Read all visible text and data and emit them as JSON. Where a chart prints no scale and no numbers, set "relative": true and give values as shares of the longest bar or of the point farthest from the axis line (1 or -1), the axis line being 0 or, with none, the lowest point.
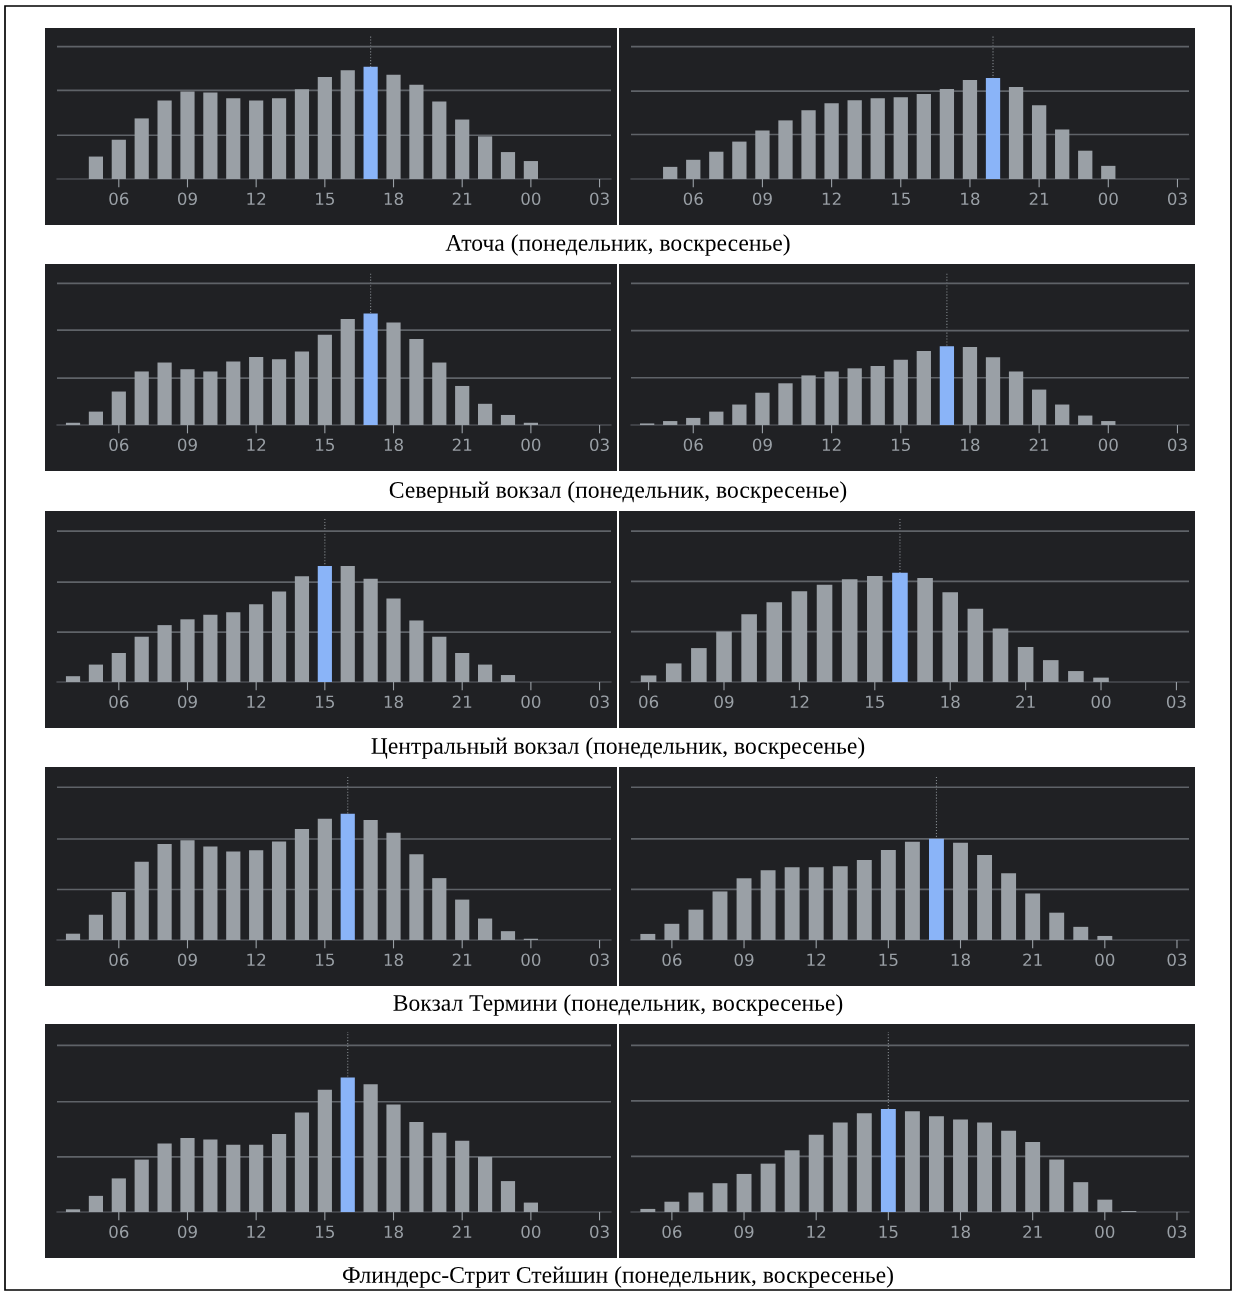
{
  "chart_data": [
    {
      "type": "bar",
      "relative": true,
      "annotations": [
        "Аточа (понедельник, воскресенье)"
      ],
      "categories": [
        null,
        null,
        "06",
        null,
        null,
        "09",
        null,
        null,
        "12",
        null,
        null,
        "15",
        null,
        null,
        "18",
        null,
        null,
        "21",
        null,
        null,
        "00",
        null,
        null,
        "03"
      ],
      "ref_lines": [
        {
          "axis": "y",
          "value": 0.39,
          "color": "#5f6368"
        },
        {
          "axis": "y",
          "value": 0.79,
          "color": "#5f6368"
        },
        {
          "axis": "y",
          "value": 1.18,
          "color": "#5f6368"
        }
      ],
      "values": [
        null,
        0.2,
        0.35,
        0.54,
        0.7,
        0.78,
        0.77,
        0.72,
        0.7,
        0.72,
        0.8,
        0.91,
        0.97,
        1,
        0.93,
        0.84,
        0.69,
        0.53,
        0.38,
        0.24,
        0.16,
        null,
        null,
        null
      ],
      "colors": [
        "#9aa0a6",
        "#9aa0a6",
        "#9aa0a6",
        "#9aa0a6",
        "#9aa0a6",
        "#9aa0a6",
        "#9aa0a6",
        "#9aa0a6",
        "#9aa0a6",
        "#9aa0a6",
        "#9aa0a6",
        "#9aa0a6",
        "#9aa0a6",
        "#8ab4f8",
        "#9aa0a6",
        "#9aa0a6",
        "#9aa0a6",
        "#9aa0a6",
        "#9aa0a6",
        "#9aa0a6",
        "#9aa0a6",
        "#9aa0a6",
        "#9aa0a6",
        "#9aa0a6"
      ]
    },
    {
      "type": "bar",
      "relative": true,
      "categories": [
        null,
        null,
        "06",
        null,
        null,
        "09",
        null,
        null,
        "12",
        null,
        null,
        "15",
        null,
        null,
        "18",
        null,
        null,
        "21",
        null,
        null,
        "00",
        null,
        null,
        "03"
      ],
      "ref_lines": [
        {
          "axis": "y",
          "value": 0.44,
          "color": "#5f6368"
        },
        {
          "axis": "y",
          "value": 0.87,
          "color": "#5f6368"
        },
        {
          "axis": "y",
          "value": 1.31,
          "color": "#5f6368"
        }
      ],
      "values": [
        null,
        0.12,
        0.19,
        0.27,
        0.37,
        0.48,
        0.58,
        0.68,
        0.75,
        0.78,
        0.8,
        0.81,
        0.84,
        0.89,
        0.98,
        1,
        0.91,
        0.73,
        0.49,
        0.28,
        0.13,
        null,
        null,
        null
      ],
      "colors": [
        "#9aa0a6",
        "#9aa0a6",
        "#9aa0a6",
        "#9aa0a6",
        "#9aa0a6",
        "#9aa0a6",
        "#9aa0a6",
        "#9aa0a6",
        "#9aa0a6",
        "#9aa0a6",
        "#9aa0a6",
        "#9aa0a6",
        "#9aa0a6",
        "#9aa0a6",
        "#9aa0a6",
        "#8ab4f8",
        "#9aa0a6",
        "#9aa0a6",
        "#9aa0a6",
        "#9aa0a6",
        "#9aa0a6",
        "#9aa0a6",
        "#9aa0a6",
        "#9aa0a6"
      ]
    },
    {
      "type": "bar",
      "relative": true,
      "annotations": [
        "Северный вокзал (понедельник, воскресенье)"
      ],
      "categories": [
        null,
        null,
        "06",
        null,
        null,
        "09",
        null,
        null,
        "12",
        null,
        null,
        "15",
        null,
        null,
        "18",
        null,
        null,
        "21",
        null,
        null,
        "00",
        null,
        null,
        "03"
      ],
      "ref_lines": [
        {
          "axis": "y",
          "value": 0.42,
          "color": "#5f6368"
        },
        {
          "axis": "y",
          "value": 0.85,
          "color": "#5f6368"
        },
        {
          "axis": "y",
          "value": 1.27,
          "color": "#5f6368"
        }
      ],
      "values": [
        0.02,
        0.12,
        0.3,
        0.48,
        0.56,
        0.5,
        0.48,
        0.57,
        0.61,
        0.59,
        0.66,
        0.81,
        0.95,
        1,
        0.92,
        0.77,
        0.56,
        0.35,
        0.19,
        0.09,
        0.02,
        null,
        null,
        null
      ],
      "colors": [
        "#9aa0a6",
        "#9aa0a6",
        "#9aa0a6",
        "#9aa0a6",
        "#9aa0a6",
        "#9aa0a6",
        "#9aa0a6",
        "#9aa0a6",
        "#9aa0a6",
        "#9aa0a6",
        "#9aa0a6",
        "#9aa0a6",
        "#9aa0a6",
        "#8ab4f8",
        "#9aa0a6",
        "#9aa0a6",
        "#9aa0a6",
        "#9aa0a6",
        "#9aa0a6",
        "#9aa0a6",
        "#9aa0a6",
        "#9aa0a6",
        "#9aa0a6",
        "#9aa0a6"
      ]
    },
    {
      "type": "bar",
      "relative": true,
      "categories": [
        null,
        null,
        "06",
        null,
        null,
        "09",
        null,
        null,
        "12",
        null,
        null,
        "15",
        null,
        null,
        "18",
        null,
        null,
        "21",
        null,
        null,
        "00",
        null,
        null,
        "03"
      ],
      "ref_lines": [
        {
          "axis": "y",
          "value": 0.6,
          "color": "#5f6368"
        },
        {
          "axis": "y",
          "value": 1.2,
          "color": "#5f6368"
        },
        {
          "axis": "y",
          "value": 1.8,
          "color": "#5f6368"
        }
      ],
      "values": [
        0.02,
        0.05,
        0.09,
        0.17,
        0.26,
        0.41,
        0.53,
        0.63,
        0.68,
        0.72,
        0.75,
        0.83,
        0.94,
        1,
        0.99,
        0.86,
        0.68,
        0.45,
        0.26,
        0.12,
        0.05,
        null,
        null,
        null
      ],
      "colors": [
        "#9aa0a6",
        "#9aa0a6",
        "#9aa0a6",
        "#9aa0a6",
        "#9aa0a6",
        "#9aa0a6",
        "#9aa0a6",
        "#9aa0a6",
        "#9aa0a6",
        "#9aa0a6",
        "#9aa0a6",
        "#9aa0a6",
        "#9aa0a6",
        "#8ab4f8",
        "#9aa0a6",
        "#9aa0a6",
        "#9aa0a6",
        "#9aa0a6",
        "#9aa0a6",
        "#9aa0a6",
        "#9aa0a6",
        "#9aa0a6",
        "#9aa0a6",
        "#9aa0a6"
      ]
    },
    {
      "type": "bar",
      "relative": true,
      "annotations": [
        "Центральный вокзал (понедельник, воскресенье)"
      ],
      "categories": [
        null,
        null,
        "06",
        null,
        null,
        "09",
        null,
        null,
        "12",
        null,
        null,
        "15",
        null,
        null,
        "18",
        null,
        null,
        "21",
        null,
        null,
        "00",
        null,
        null,
        "03"
      ],
      "ref_lines": [
        {
          "axis": "y",
          "value": 0.43,
          "color": "#5f6368"
        },
        {
          "axis": "y",
          "value": 0.86,
          "color": "#5f6368"
        },
        {
          "axis": "y",
          "value": 1.3,
          "color": "#5f6368"
        }
      ],
      "values": [
        0.05,
        0.15,
        0.25,
        0.39,
        0.49,
        0.54,
        0.58,
        0.6,
        0.67,
        0.78,
        0.91,
        1,
        1,
        0.89,
        0.72,
        0.53,
        0.39,
        0.25,
        0.15,
        0.06,
        null,
        null,
        null,
        null
      ],
      "colors": [
        "#9aa0a6",
        "#9aa0a6",
        "#9aa0a6",
        "#9aa0a6",
        "#9aa0a6",
        "#9aa0a6",
        "#9aa0a6",
        "#9aa0a6",
        "#9aa0a6",
        "#9aa0a6",
        "#9aa0a6",
        "#8ab4f8",
        "#9aa0a6",
        "#9aa0a6",
        "#9aa0a6",
        "#9aa0a6",
        "#9aa0a6",
        "#9aa0a6",
        "#9aa0a6",
        "#9aa0a6",
        "#9aa0a6",
        "#9aa0a6",
        "#9aa0a6",
        "#9aa0a6"
      ]
    },
    {
      "type": "bar",
      "relative": true,
      "categories": [
        "06",
        null,
        null,
        "09",
        null,
        null,
        "12",
        null,
        null,
        "15",
        null,
        null,
        "18",
        null,
        null,
        "21",
        null,
        null,
        "00",
        null,
        null,
        "03"
      ],
      "ref_lines": [
        {
          "axis": "y",
          "value": 0.46,
          "color": "#5f6368"
        },
        {
          "axis": "y",
          "value": 0.92,
          "color": "#5f6368"
        },
        {
          "axis": "y",
          "value": 1.38,
          "color": "#5f6368"
        }
      ],
      "values": [
        0.06,
        0.17,
        0.31,
        0.46,
        0.62,
        0.73,
        0.83,
        0.89,
        0.94,
        0.97,
        1,
        0.95,
        0.82,
        0.67,
        0.49,
        0.32,
        0.2,
        0.1,
        0.04,
        null,
        null,
        null
      ],
      "colors": [
        "#9aa0a6",
        "#9aa0a6",
        "#9aa0a6",
        "#9aa0a6",
        "#9aa0a6",
        "#9aa0a6",
        "#9aa0a6",
        "#9aa0a6",
        "#9aa0a6",
        "#9aa0a6",
        "#8ab4f8",
        "#9aa0a6",
        "#9aa0a6",
        "#9aa0a6",
        "#9aa0a6",
        "#9aa0a6",
        "#9aa0a6",
        "#9aa0a6",
        "#9aa0a6",
        "#9aa0a6",
        "#9aa0a6",
        "#9aa0a6"
      ]
    },
    {
      "type": "bar",
      "relative": true,
      "annotations": [
        "Вокзал Термини (понедельник, воскресенье)"
      ],
      "categories": [
        null,
        null,
        "06",
        null,
        null,
        "09",
        null,
        null,
        "12",
        null,
        null,
        "15",
        null,
        null,
        "18",
        null,
        null,
        "21",
        null,
        null,
        "00",
        null,
        null,
        "03"
      ],
      "ref_lines": [
        {
          "axis": "y",
          "value": 0.4,
          "color": "#5f6368"
        },
        {
          "axis": "y",
          "value": 0.8,
          "color": "#5f6368"
        },
        {
          "axis": "y",
          "value": 1.21,
          "color": "#5f6368"
        }
      ],
      "values": [
        0.05,
        0.2,
        0.38,
        0.62,
        0.76,
        0.79,
        0.74,
        0.7,
        0.71,
        0.78,
        0.88,
        0.96,
        1,
        0.95,
        0.85,
        0.68,
        0.49,
        0.32,
        0.17,
        0.07,
        0.01,
        null,
        null,
        null
      ],
      "colors": [
        "#9aa0a6",
        "#9aa0a6",
        "#9aa0a6",
        "#9aa0a6",
        "#9aa0a6",
        "#9aa0a6",
        "#9aa0a6",
        "#9aa0a6",
        "#9aa0a6",
        "#9aa0a6",
        "#9aa0a6",
        "#9aa0a6",
        "#8ab4f8",
        "#9aa0a6",
        "#9aa0a6",
        "#9aa0a6",
        "#9aa0a6",
        "#9aa0a6",
        "#9aa0a6",
        "#9aa0a6",
        "#9aa0a6",
        "#9aa0a6",
        "#9aa0a6",
        "#9aa0a6"
      ]
    },
    {
      "type": "bar",
      "relative": true,
      "categories": [
        null,
        "06",
        null,
        null,
        "09",
        null,
        null,
        "12",
        null,
        null,
        "15",
        null,
        null,
        "18",
        null,
        null,
        "21",
        null,
        null,
        "00",
        null,
        null,
        "03"
      ],
      "ref_lines": [
        {
          "axis": "y",
          "value": 0.5,
          "color": "#5f6368"
        },
        {
          "axis": "y",
          "value": 1.0,
          "color": "#5f6368"
        },
        {
          "axis": "y",
          "value": 1.51,
          "color": "#5f6368"
        }
      ],
      "values": [
        0.06,
        0.16,
        0.3,
        0.48,
        0.61,
        0.69,
        0.72,
        0.72,
        0.73,
        0.79,
        0.89,
        0.97,
        1,
        0.96,
        0.84,
        0.66,
        0.46,
        0.27,
        0.13,
        0.04,
        null,
        null,
        null
      ],
      "colors": [
        "#9aa0a6",
        "#9aa0a6",
        "#9aa0a6",
        "#9aa0a6",
        "#9aa0a6",
        "#9aa0a6",
        "#9aa0a6",
        "#9aa0a6",
        "#9aa0a6",
        "#9aa0a6",
        "#9aa0a6",
        "#9aa0a6",
        "#8ab4f8",
        "#9aa0a6",
        "#9aa0a6",
        "#9aa0a6",
        "#9aa0a6",
        "#9aa0a6",
        "#9aa0a6",
        "#9aa0a6",
        "#9aa0a6",
        "#9aa0a6",
        "#9aa0a6"
      ]
    },
    {
      "type": "bar",
      "relative": true,
      "annotations": [
        "Флиндерс-Стрит Стейшин (понедельник, воскресенье)"
      ],
      "categories": [
        null,
        null,
        "06",
        null,
        null,
        "09",
        null,
        null,
        "12",
        null,
        null,
        "15",
        null,
        null,
        "18",
        null,
        null,
        "21",
        null,
        null,
        "00",
        null,
        null,
        "03"
      ],
      "ref_lines": [
        {
          "axis": "y",
          "value": 0.41,
          "color": "#5f6368"
        },
        {
          "axis": "y",
          "value": 0.82,
          "color": "#5f6368"
        },
        {
          "axis": "y",
          "value": 1.24,
          "color": "#5f6368"
        }
      ],
      "values": [
        0.02,
        0.12,
        0.25,
        0.39,
        0.51,
        0.55,
        0.54,
        0.5,
        0.5,
        0.58,
        0.74,
        0.91,
        1,
        0.95,
        0.8,
        0.67,
        0.59,
        0.53,
        0.41,
        0.23,
        0.07,
        null,
        null,
        null
      ],
      "colors": [
        "#9aa0a6",
        "#9aa0a6",
        "#9aa0a6",
        "#9aa0a6",
        "#9aa0a6",
        "#9aa0a6",
        "#9aa0a6",
        "#9aa0a6",
        "#9aa0a6",
        "#9aa0a6",
        "#9aa0a6",
        "#9aa0a6",
        "#8ab4f8",
        "#9aa0a6",
        "#9aa0a6",
        "#9aa0a6",
        "#9aa0a6",
        "#9aa0a6",
        "#9aa0a6",
        "#9aa0a6",
        "#9aa0a6",
        "#9aa0a6",
        "#9aa0a6",
        "#9aa0a6"
      ]
    },
    {
      "type": "bar",
      "relative": true,
      "categories": [
        null,
        "06",
        null,
        null,
        "09",
        null,
        null,
        "12",
        null,
        null,
        "15",
        null,
        null,
        "18",
        null,
        null,
        "21",
        null,
        null,
        "00",
        null,
        null,
        "03"
      ],
      "ref_lines": [
        {
          "axis": "y",
          "value": 0.54,
          "color": "#5f6368"
        },
        {
          "axis": "y",
          "value": 1.08,
          "color": "#5f6368"
        },
        {
          "axis": "y",
          "value": 1.62,
          "color": "#5f6368"
        }
      ],
      "values": [
        0.03,
        0.1,
        0.19,
        0.28,
        0.37,
        0.47,
        0.6,
        0.75,
        0.87,
        0.96,
        1,
        0.98,
        0.93,
        0.9,
        0.87,
        0.79,
        0.68,
        0.51,
        0.29,
        0.12,
        0.01,
        null,
        null
      ],
      "colors": [
        "#9aa0a6",
        "#9aa0a6",
        "#9aa0a6",
        "#9aa0a6",
        "#9aa0a6",
        "#9aa0a6",
        "#9aa0a6",
        "#9aa0a6",
        "#9aa0a6",
        "#9aa0a6",
        "#8ab4f8",
        "#9aa0a6",
        "#9aa0a6",
        "#9aa0a6",
        "#9aa0a6",
        "#9aa0a6",
        "#9aa0a6",
        "#9aa0a6",
        "#9aa0a6",
        "#9aa0a6",
        "#9aa0a6",
        "#9aa0a6",
        "#9aa0a6"
      ]
    }
  ]
}
